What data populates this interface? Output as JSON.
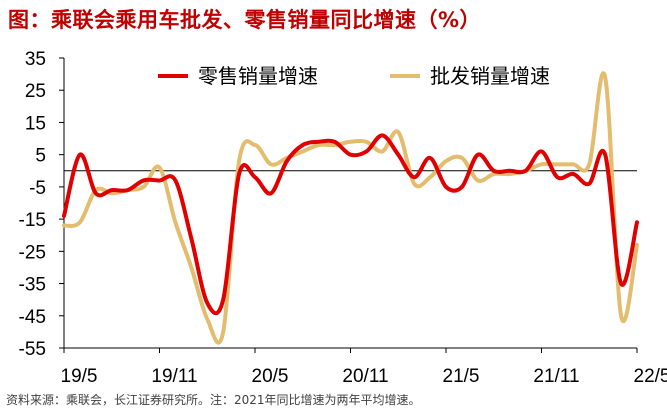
{
  "chart_data": {
    "type": "line",
    "title": "图：乘联会乘用车批发、零售销量同比增速（%）",
    "xlabel": "",
    "ylabel": "",
    "ylim": [
      -55,
      35
    ],
    "yticks": [
      35,
      25,
      15,
      5,
      -5,
      -15,
      -25,
      -35,
      -45,
      -55
    ],
    "xtick_labels": [
      "19/5",
      "19/11",
      "20/5",
      "20/11",
      "21/5",
      "21/11",
      "22/5"
    ],
    "x": [
      "19/5",
      "19/6",
      "19/7",
      "19/8",
      "19/9",
      "19/10",
      "19/11",
      "19/12",
      "20/1",
      "20/2",
      "20/3",
      "20/4",
      "20/5",
      "20/6",
      "20/7",
      "20/8",
      "20/9",
      "20/10",
      "20/11",
      "20/12",
      "21/1",
      "21/2",
      "21/3",
      "21/4",
      "21/5",
      "21/6",
      "21/7",
      "21/8",
      "21/9",
      "21/10",
      "21/11",
      "21/12",
      "22/1",
      "22/2",
      "22/3",
      "22/4",
      "22/5"
    ],
    "series": [
      {
        "name": "零售销量增速",
        "color": "#E00000",
        "values": [
          -14,
          5,
          -7,
          -6,
          -6,
          -3,
          -3,
          -3,
          -21,
          -41,
          -40,
          -1,
          -2,
          -7,
          3,
          8,
          9,
          9,
          5,
          6,
          11,
          5,
          -2,
          4,
          -5,
          -5,
          5,
          0,
          0,
          0,
          6,
          -2,
          -1,
          -4,
          5,
          -35,
          -16
        ]
      },
      {
        "name": "批发销量增速",
        "color": "#E3BC6E",
        "values": [
          -17,
          -16,
          -6,
          -7,
          -6,
          -5,
          1,
          -16,
          -30,
          -46,
          -50,
          3,
          8,
          2,
          4,
          6,
          8,
          8,
          9,
          9,
          6,
          12,
          -4,
          -2,
          3,
          4,
          -3,
          -1,
          -1,
          0,
          2,
          2,
          2,
          2,
          29,
          -45,
          -23
        ]
      }
    ]
  },
  "title": "图：乘联会乘用车批发、零售销量同比增速（%）",
  "source": "资料来源：乘联会，长江证券研究所。注：2021年同比增速为两年平均增速。"
}
